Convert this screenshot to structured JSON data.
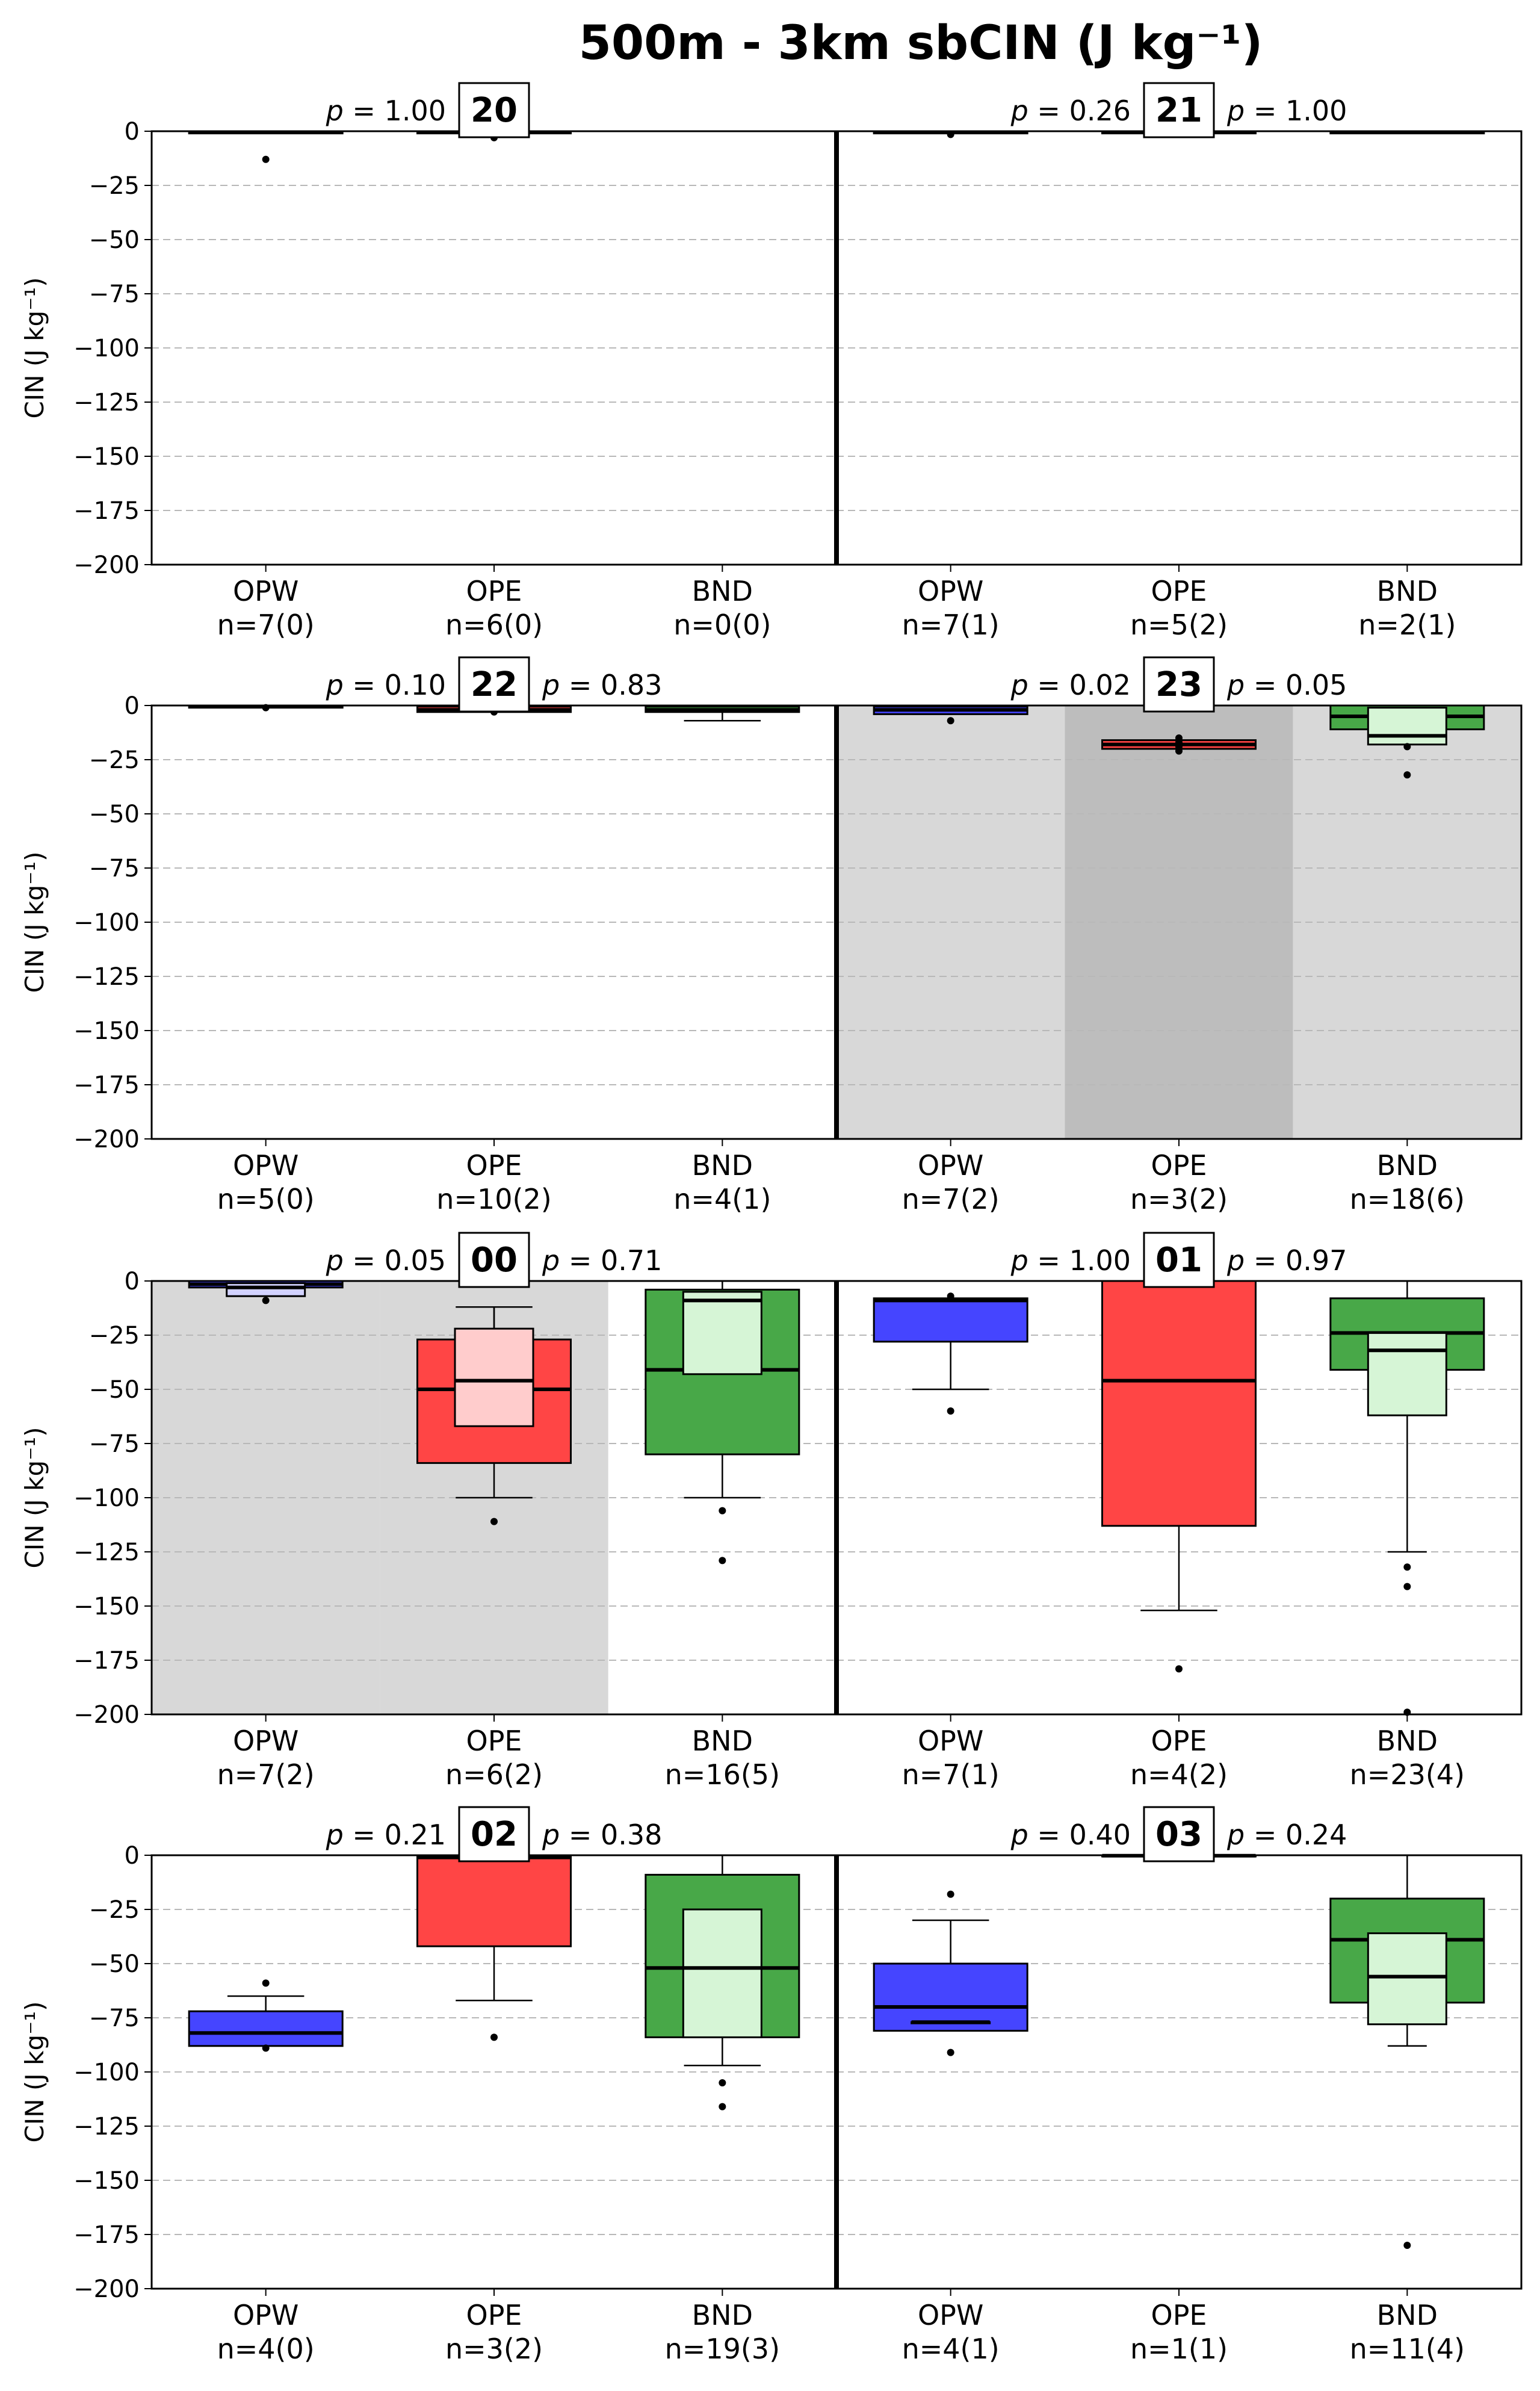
{
  "title": "500m - 3km sbCIN (J kg⁻¹)",
  "ylabel": "CIN (J kg⁻¹)",
  "chart_data": {
    "type": "box",
    "ylim": [
      -200,
      0
    ],
    "yticks": [
      0,
      -25,
      -50,
      -75,
      -100,
      -125,
      -150,
      -175,
      -200
    ],
    "ytick_labels": [
      "0",
      "−25",
      "−50",
      "−75",
      "−100",
      "−125",
      "−150",
      "−175",
      "−200"
    ],
    "grid": "horizontal-dashed",
    "categories": [
      "OPW",
      "OPE",
      "BND"
    ],
    "series_colors": {
      "OPW": "#4545ff",
      "OPE": "#ff4545",
      "BND": "#48a848"
    },
    "sub_colors": {
      "OPW": "#d2d2ff",
      "OPE": "#ffcccc",
      "BND": "#d6f5d6"
    },
    "panels": [
      {
        "hour": "20",
        "p_left": {
          "label": "p",
          "value": "= 1.00"
        },
        "p_right": null,
        "shade": [
          null,
          null,
          null
        ],
        "groups": [
          {
            "cat": "OPW",
            "n": "n=7(0)",
            "main": {
              "q1": -1,
              "q3": -0.3,
              "med": -0.5,
              "wlo": -1,
              "whi": 0
            },
            "sub": null,
            "fliers": [
              -13
            ]
          },
          {
            "cat": "OPE",
            "n": "n=6(0)",
            "main": {
              "q1": -1,
              "q3": -0.3,
              "med": -0.5,
              "wlo": -1,
              "whi": 0
            },
            "sub": null,
            "fliers": [
              -3
            ]
          },
          {
            "cat": "BND",
            "n": "n=0(0)",
            "main": null,
            "sub": null,
            "fliers": []
          }
        ]
      },
      {
        "hour": "21",
        "p_left": {
          "label": "p",
          "value": "= 0.26"
        },
        "p_right": {
          "label": "p",
          "value": "= 1.00"
        },
        "shade": [
          null,
          null,
          null
        ],
        "groups": [
          {
            "cat": "OPW",
            "n": "n=7(1)",
            "main": {
              "q1": -1,
              "q3": -0.3,
              "med": -0.5,
              "wlo": -1,
              "whi": 0
            },
            "sub": null,
            "fliers": [
              -1.5
            ]
          },
          {
            "cat": "OPE",
            "n": "n=5(2)",
            "main": {
              "q1": -1,
              "q3": -0.3,
              "med": -0.5,
              "wlo": -1,
              "whi": 0
            },
            "sub": null,
            "fliers": []
          },
          {
            "cat": "BND",
            "n": "n=2(1)",
            "main": {
              "q1": -1,
              "q3": -0.3,
              "med": -0.5,
              "wlo": -1,
              "whi": 0
            },
            "sub": null,
            "fliers": []
          }
        ]
      },
      {
        "hour": "22",
        "p_left": {
          "label": "p",
          "value": "= 0.10"
        },
        "p_right": {
          "label": "p",
          "value": "= 0.83"
        },
        "shade": [
          null,
          null,
          null
        ],
        "groups": [
          {
            "cat": "OPW",
            "n": "n=5(0)",
            "main": {
              "q1": -1,
              "q3": -0.3,
              "med": -0.5,
              "wlo": -1,
              "whi": 0
            },
            "sub": null,
            "fliers": [
              -1
            ]
          },
          {
            "cat": "OPE",
            "n": "n=10(2)",
            "main": {
              "q1": -3,
              "q3": -0.5,
              "med": -2,
              "wlo": -3,
              "whi": 0
            },
            "sub": null,
            "fliers": [
              -3
            ]
          },
          {
            "cat": "BND",
            "n": "n=4(1)",
            "main": {
              "q1": -3,
              "q3": -0.5,
              "med": -2,
              "wlo": -7,
              "whi": 0
            },
            "sub": null,
            "fliers": []
          }
        ]
      },
      {
        "hour": "23",
        "p_left": {
          "label": "p",
          "value": "= 0.02"
        },
        "p_right": {
          "label": "p",
          "value": "= 0.05"
        },
        "shade": [
          "#d8d8d8",
          "#bdbdbd",
          "#d8d8d8"
        ],
        "groups": [
          {
            "cat": "OPW",
            "n": "n=7(2)",
            "main": {
              "q1": -4,
              "q3": -0.5,
              "med": -2,
              "wlo": -4,
              "whi": 0
            },
            "sub": null,
            "fliers": [
              -7
            ]
          },
          {
            "cat": "OPE",
            "n": "n=3(2)",
            "main": {
              "q1": -20,
              "q3": -16,
              "med": -18,
              "wlo": -20,
              "whi": -16
            },
            "sub": null,
            "fliers": [
              -15,
              -17,
              -19,
              -21
            ]
          },
          {
            "cat": "BND",
            "n": "n=18(6)",
            "main": {
              "q1": -11,
              "q3": 0,
              "med": -5,
              "wlo": -11,
              "whi": 0
            },
            "sub": {
              "q1": -18,
              "q3": -1,
              "med": -14,
              "wlo": -18,
              "whi": -1
            },
            "fliers": [
              -19,
              -32
            ]
          }
        ]
      },
      {
        "hour": "00",
        "p_left": {
          "label": "p",
          "value": "= 0.05"
        },
        "p_right": {
          "label": "p",
          "value": "= 0.71"
        },
        "shade": [
          "#d8d8d8",
          "#d8d8d8",
          null
        ],
        "groups": [
          {
            "cat": "OPW",
            "n": "n=7(2)",
            "main": {
              "q1": -3,
              "q3": 0,
              "med": -1.5,
              "wlo": -3,
              "whi": 0
            },
            "sub": {
              "q1": -7,
              "q3": -1,
              "med": -3,
              "wlo": -7,
              "whi": -1
            },
            "fliers": [
              -9
            ]
          },
          {
            "cat": "OPE",
            "n": "n=6(2)",
            "main": {
              "q1": -84,
              "q3": -27,
              "med": -50,
              "wlo": -100,
              "whi": -12
            },
            "sub": {
              "q1": -67,
              "q3": -22,
              "med": -46,
              "wlo": -67,
              "whi": -12
            },
            "fliers": [
              -111
            ]
          },
          {
            "cat": "BND",
            "n": "n=16(5)",
            "main": {
              "q1": -80,
              "q3": -4,
              "med": -41,
              "wlo": -100,
              "whi": 0
            },
            "sub": {
              "q1": -43,
              "q3": -5,
              "med": -9,
              "wlo": -43,
              "whi": -5
            },
            "fliers": [
              -106,
              -129
            ]
          }
        ]
      },
      {
        "hour": "01",
        "p_left": {
          "label": "p",
          "value": "= 1.00"
        },
        "p_right": {
          "label": "p",
          "value": "= 0.97"
        },
        "shade": [
          null,
          null,
          null
        ],
        "groups": [
          {
            "cat": "OPW",
            "n": "n=7(1)",
            "main": {
              "q1": -28,
              "q3": -8,
              "med": -9,
              "wlo": -50,
              "whi": -8
            },
            "sub": null,
            "fliers": [
              -7,
              -60
            ]
          },
          {
            "cat": "OPE",
            "n": "n=4(2)",
            "main": {
              "q1": -113,
              "q3": 0,
              "med": -46,
              "wlo": -152,
              "whi": 0
            },
            "sub": null,
            "fliers": [
              -179
            ]
          },
          {
            "cat": "BND",
            "n": "n=23(4)",
            "main": {
              "q1": -41,
              "q3": -8,
              "med": -24,
              "wlo": -41,
              "whi": 0
            },
            "sub": {
              "q1": -62,
              "q3": -24,
              "med": -32,
              "wlo": -125,
              "whi": -24
            },
            "fliers": [
              -132,
              -141,
              -199
            ]
          }
        ]
      },
      {
        "hour": "02",
        "p_left": {
          "label": "p",
          "value": "= 0.21"
        },
        "p_right": {
          "label": "p",
          "value": "= 0.38"
        },
        "shade": [
          null,
          null,
          null
        ],
        "groups": [
          {
            "cat": "OPW",
            "n": "n=4(0)",
            "main": {
              "q1": -88,
              "q3": -72,
              "med": -82,
              "wlo": -88,
              "whi": -65
            },
            "sub": null,
            "fliers": [
              -59,
              -89
            ]
          },
          {
            "cat": "OPE",
            "n": "n=3(2)",
            "main": {
              "q1": -42,
              "q3": 0,
              "med": -1,
              "wlo": -67,
              "whi": 0
            },
            "sub": null,
            "fliers": [
              -84
            ]
          },
          {
            "cat": "BND",
            "n": "n=19(3)",
            "main": {
              "q1": -84,
              "q3": -9,
              "med": -52,
              "wlo": -97,
              "whi": 0
            },
            "sub": {
              "q1": -84,
              "q3": -25,
              "med": -52,
              "wlo": -84,
              "whi": -25
            },
            "fliers": [
              -105,
              -116
            ]
          }
        ]
      },
      {
        "hour": "03",
        "p_left": {
          "label": "p",
          "value": "= 0.40"
        },
        "p_right": {
          "label": "p",
          "value": "= 0.24"
        },
        "shade": [
          null,
          null,
          null
        ],
        "groups": [
          {
            "cat": "OPW",
            "n": "n=4(1)",
            "main": {
              "q1": -81,
              "q3": -50,
              "med": -70,
              "wlo": -81,
              "whi": -30
            },
            "sub": {
              "q1": -77,
              "q3": -77,
              "med": -77,
              "wlo": -77,
              "whi": -77
            },
            "fliers": [
              -18,
              -91
            ]
          },
          {
            "cat": "OPE",
            "n": "n=1(1)",
            "main": {
              "q1": -0.3,
              "q3": 0,
              "med": -0.2,
              "wlo": -0.3,
              "whi": 0
            },
            "sub": null,
            "fliers": []
          },
          {
            "cat": "BND",
            "n": "n=11(4)",
            "main": {
              "q1": -68,
              "q3": -20,
              "med": -39,
              "wlo": -68,
              "whi": 0
            },
            "sub": {
              "q1": -78,
              "q3": -36,
              "med": -56,
              "wlo": -88,
              "whi": -36
            },
            "fliers": [
              -180
            ]
          }
        ]
      }
    ]
  }
}
